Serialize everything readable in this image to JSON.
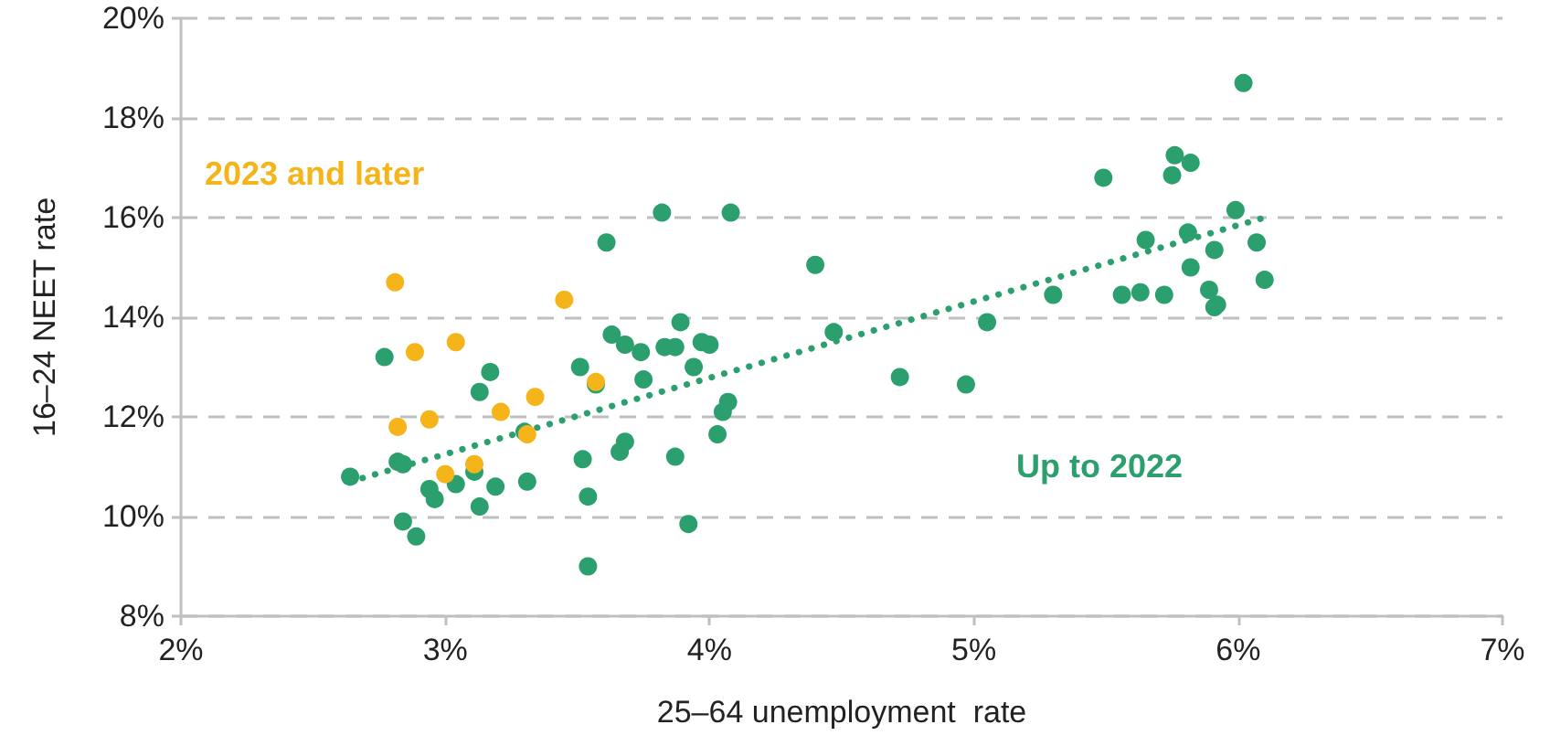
{
  "chart_data": {
    "type": "scatter",
    "xlabel": "25–64 unemployment  rate",
    "ylabel": "16–24 NEET rate",
    "xlim": [
      2,
      7
    ],
    "xticks": [
      {
        "value": 2,
        "label": "2%"
      },
      {
        "value": 3,
        "label": "3%"
      },
      {
        "value": 4,
        "label": "4%"
      },
      {
        "value": 5,
        "label": "5%"
      },
      {
        "value": 6,
        "label": "6%"
      },
      {
        "value": 7,
        "label": "7%"
      }
    ],
    "ylim": [
      8,
      20
    ],
    "yticks": [
      {
        "value": 8,
        "label": "8%"
      },
      {
        "value": 10,
        "label": "10%"
      },
      {
        "value": 12,
        "label": "12%"
      },
      {
        "value": 14,
        "label": "14%"
      },
      {
        "value": 16,
        "label": "16%"
      },
      {
        "value": 18,
        "label": "18%"
      },
      {
        "value": 20,
        "label": "20%"
      }
    ],
    "grid": "y",
    "marker": "circle",
    "series": [
      {
        "name": "Up to 2022",
        "color": "#2b9f6e",
        "x": [
          2.64,
          2.77,
          2.82,
          2.84,
          2.84,
          2.89,
          2.94,
          2.96,
          3.04,
          3.11,
          3.13,
          3.13,
          3.17,
          3.19,
          3.3,
          3.31,
          3.51,
          3.52,
          3.54,
          3.54,
          3.57,
          3.61,
          3.63,
          3.66,
          3.68,
          3.68,
          3.74,
          3.75,
          3.82,
          3.83,
          3.87,
          3.87,
          3.89,
          3.92,
          3.94,
          3.97,
          4.0,
          4.03,
          4.05,
          4.07,
          4.08,
          4.4,
          4.47,
          4.72,
          4.97,
          5.05,
          5.3,
          5.49,
          5.56,
          5.63,
          5.65,
          5.72,
          5.75,
          5.76,
          5.81,
          5.82,
          5.82,
          5.89,
          5.91,
          5.92,
          5.91,
          5.99,
          6.02,
          6.07,
          6.1
        ],
        "values": [
          10.8,
          13.2,
          11.1,
          11.05,
          9.9,
          9.6,
          10.55,
          10.35,
          10.65,
          10.9,
          10.2,
          12.5,
          12.9,
          10.6,
          11.7,
          10.7,
          13.0,
          11.15,
          10.4,
          9.0,
          12.65,
          15.5,
          13.65,
          11.3,
          11.5,
          13.45,
          13.3,
          12.75,
          16.1,
          13.4,
          13.4,
          11.2,
          13.9,
          9.85,
          13.0,
          13.5,
          13.45,
          11.65,
          12.1,
          12.3,
          16.1,
          15.05,
          13.7,
          12.8,
          12.65,
          13.9,
          14.45,
          16.8,
          14.45,
          14.5,
          15.55,
          14.45,
          16.85,
          17.25,
          15.7,
          15.0,
          17.1,
          14.55,
          14.2,
          14.25,
          15.35,
          16.15,
          18.7,
          15.5,
          14.75
        ]
      },
      {
        "name": "2023 and later",
        "color": "#f4b41a",
        "x": [
          2.81,
          2.82,
          2.885,
          2.94,
          3.0,
          3.04,
          3.11,
          3.21,
          3.31,
          3.34,
          3.45,
          3.57
        ],
        "values": [
          14.7,
          11.8,
          13.3,
          11.95,
          10.85,
          13.5,
          11.05,
          12.1,
          11.65,
          12.4,
          14.35,
          12.7
        ]
      },
      {
        "type": "line",
        "color": "#2b9f6e",
        "line_style": "dotted",
        "marker": "none",
        "x": [
          2.64,
          6.1
        ],
        "values": [
          10.7,
          16.0
        ]
      }
    ]
  }
}
